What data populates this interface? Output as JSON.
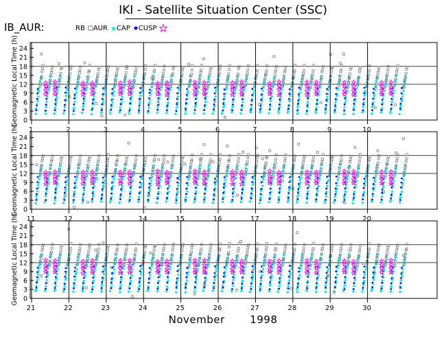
{
  "header": {
    "title": "IKI - Satellite Situation Center (SSC)",
    "instrument": "IB_AUR:"
  },
  "legend": [
    {
      "label": "RB",
      "symbol": "none"
    },
    {
      "label": "AUR",
      "symbol": "square",
      "color": "#808080"
    },
    {
      "label": "CAP",
      "symbol": "star",
      "color": "#00e5ff"
    },
    {
      "label": "CUSP",
      "symbol": "dot",
      "color": "#0000ff"
    },
    {
      "label": "",
      "symbol": "open-star",
      "color": "#ff00ff"
    }
  ],
  "footer": {
    "month": "November",
    "year": "1998"
  },
  "colors": {
    "aur": "#808080",
    "cap": "#00e5ff",
    "cusp": "#0000ff",
    "star": "#ff00ff",
    "grid": "#000000"
  },
  "chart_data": {
    "type": "scatter",
    "ylabel": "Geomagnetic Local Time  (h)",
    "yticks": [
      0,
      3,
      6,
      9,
      12,
      15,
      18,
      21,
      24
    ],
    "ylim": [
      0,
      26
    ],
    "panels": [
      {
        "days": [
          1,
          2,
          3,
          4,
          5,
          6,
          7,
          8,
          9,
          10
        ]
      },
      {
        "days": [
          11,
          12,
          13,
          14,
          15,
          16,
          17,
          18,
          19,
          20
        ]
      },
      {
        "days": [
          21,
          22,
          23,
          24,
          25,
          26,
          27,
          28,
          29,
          30
        ]
      }
    ],
    "orbits_per_day": 4,
    "series": [
      {
        "name": "AUR",
        "description_values": "GLT ~11-18 h ascending band, scattered 0-24 h"
      },
      {
        "name": "CAP",
        "description_values": "dense band GLT ~2-15 h"
      },
      {
        "name": "CUSP",
        "description_values": "GLT ~3-12 h"
      },
      {
        "name": "star",
        "description_values": "GLT ~8-14 h"
      }
    ]
  }
}
